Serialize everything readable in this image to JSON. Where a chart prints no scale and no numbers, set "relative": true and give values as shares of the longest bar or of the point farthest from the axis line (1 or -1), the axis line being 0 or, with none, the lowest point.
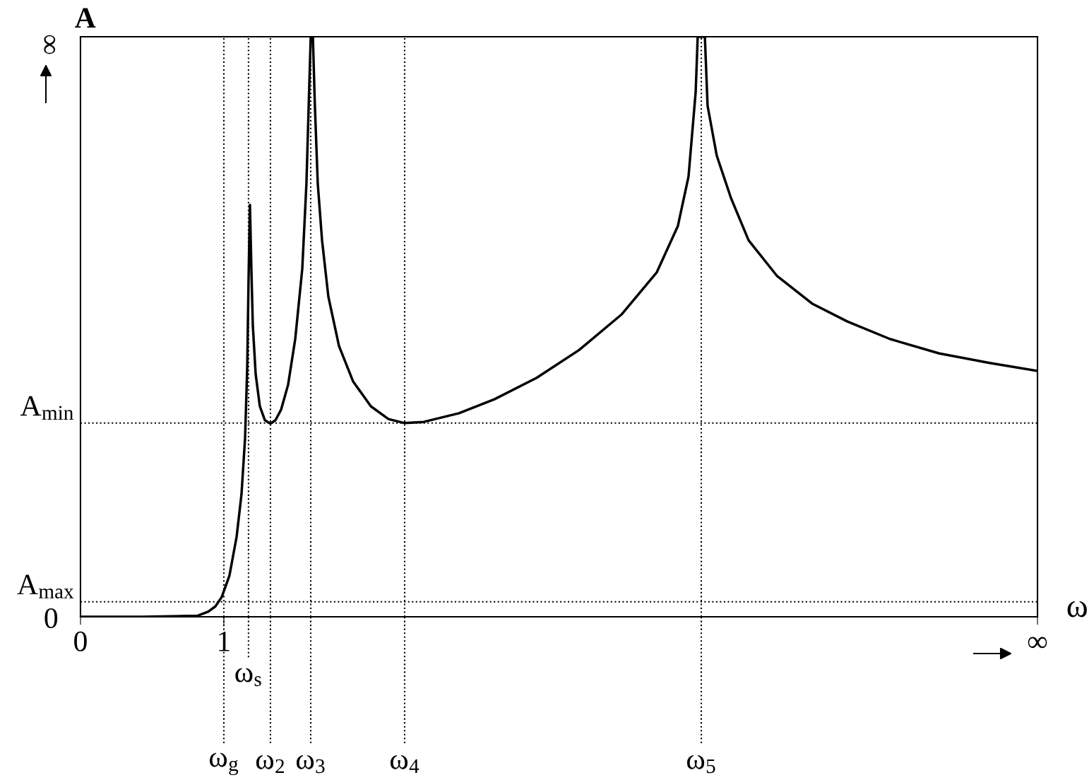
{
  "chart_data": {
    "type": "line",
    "relative": true,
    "ylabel": "A",
    "xlabel": "ω",
    "xlim": [
      0,
      6.675
    ],
    "xticks": [
      0,
      1,
      {
        "value": 6.675,
        "label": "∞"
      }
    ],
    "x": [
      0,
      0.424,
      0.818,
      0.892,
      0.941,
      0.985,
      1.039,
      1.089,
      1.123,
      1.148,
      1.163,
      1.172,
      1.182,
      1.192,
      1.202,
      1.222,
      1.251,
      1.286,
      1.325,
      1.36,
      1.399,
      1.448,
      1.498,
      1.547,
      1.576,
      1.596,
      1.606,
      1.621,
      1.635,
      1.655,
      1.685,
      1.729,
      1.803,
      1.901,
      2.025,
      2.148,
      2.261,
      2.394,
      2.64,
      2.887,
      3.182,
      3.478,
      3.773,
      4.02,
      4.167,
      4.241,
      4.291,
      4.305,
      4.355,
      4.374,
      4.438,
      4.537,
      4.66,
      4.857,
      5.103,
      5.35,
      5.645,
      5.99,
      6.335,
      6.675
    ],
    "series": [
      {
        "color": "#000000",
        "values": [
          0,
          0,
          0.002,
          0.009,
          0.018,
          0.034,
          0.071,
          0.138,
          0.211,
          0.308,
          0.43,
          0.576,
          0.71,
          0.6,
          0.503,
          0.418,
          0.363,
          0.339,
          0.333,
          0.339,
          0.357,
          0.4,
          0.479,
          0.6,
          0.747,
          0.917,
          1,
          1,
          0.881,
          0.747,
          0.649,
          0.552,
          0.467,
          0.406,
          0.363,
          0.341,
          0.334,
          0.336,
          0.351,
          0.375,
          0.412,
          0.46,
          0.521,
          0.594,
          0.674,
          0.759,
          0.905,
          1,
          1,
          0.881,
          0.795,
          0.722,
          0.649,
          0.588,
          0.54,
          0.509,
          0.479,
          0.454,
          0.438,
          0.424
        ]
      }
    ],
    "ref_lines": [
      {
        "axis": "x",
        "value": 1,
        "label": "ω$_{g}$",
        "line_style": "dotted"
      },
      {
        "axis": "x",
        "value": 1.172,
        "label": "ω$_{s}$",
        "line_style": "dotted"
      },
      {
        "axis": "x",
        "value": 1.325,
        "label": "ω$_{2}$",
        "line_style": "dotted"
      },
      {
        "axis": "x",
        "value": 1.606,
        "label": "ω$_{3}$",
        "line_style": "dotted"
      },
      {
        "axis": "x",
        "value": 2.261,
        "label": "ω$_{4}$",
        "line_style": "dotted"
      },
      {
        "axis": "x",
        "value": 4.33,
        "label": "ω$_{5}$",
        "line_style": "dotted"
      },
      {
        "axis": "y",
        "value": 0.334,
        "label": "A$_{min}$",
        "line_style": "dotted"
      },
      {
        "axis": "y",
        "value": 0.026,
        "label": "A$_{max}$",
        "line_style": "dotted"
      }
    ],
    "annotations": [
      "0",
      "∞"
    ],
    "grid": false,
    "legend": false,
    "line_style": "solid",
    "marker": "none"
  }
}
